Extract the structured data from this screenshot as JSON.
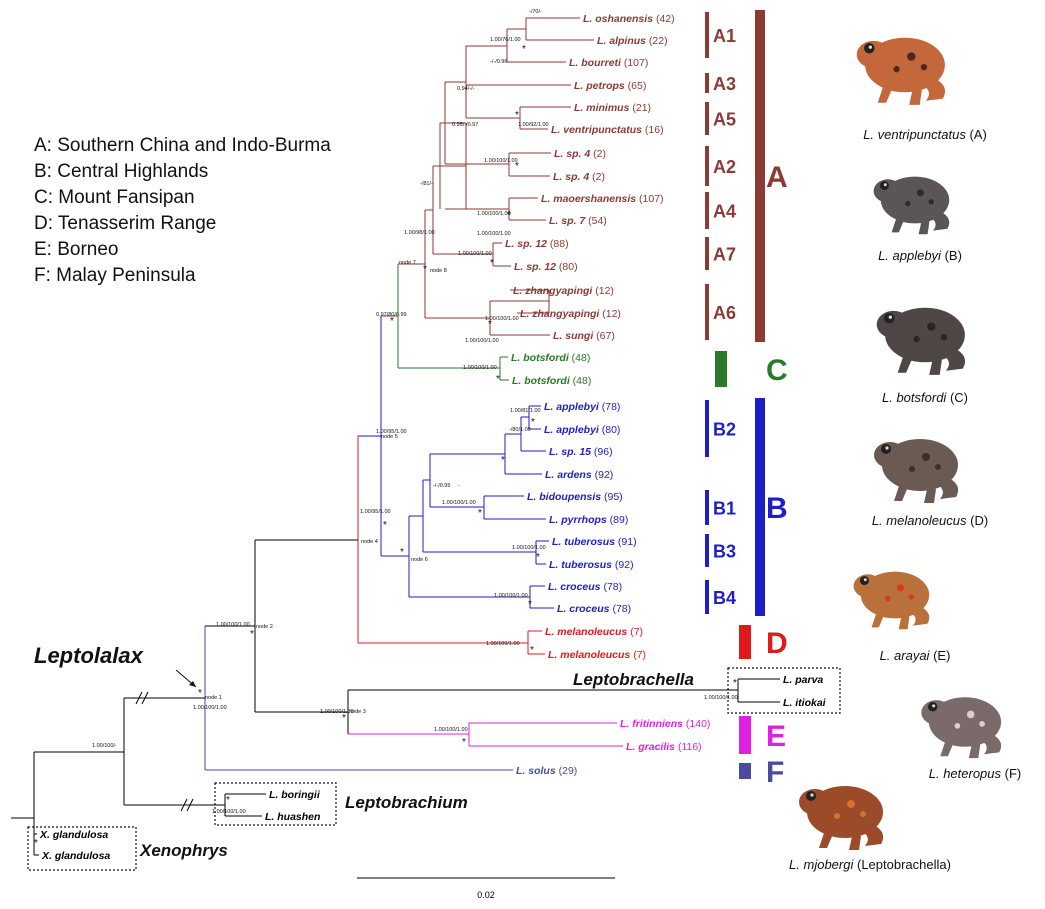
{
  "legend": [
    "A: Southern China and Indo-Burma",
    "B: Central Highlands",
    "C: Mount Fansipan",
    "D: Tenasserim Range",
    "E: Borneo",
    "F: Malay Peninsula"
  ],
  "colors": {
    "A": "#8b3a34",
    "B": "#1e1ec8",
    "C": "#2a7a2a",
    "D": "#e01a1a",
    "E": "#e020e0",
    "F": "#4a4aa0",
    "outgroup": "#000000"
  },
  "taxa": [
    {
      "name": "L. oshanensis",
      "count": "(42)",
      "clade": "A"
    },
    {
      "name": "L. alpinus",
      "count": "(22)",
      "clade": "A"
    },
    {
      "name": "L. bourreti",
      "count": "(107)",
      "clade": "A"
    },
    {
      "name": "L. petrops",
      "count": "(65)",
      "clade": "A"
    },
    {
      "name": "L. minimus",
      "count": "(21)",
      "clade": "A"
    },
    {
      "name": "L. ventripunctatus",
      "count": "(16)",
      "clade": "A"
    },
    {
      "name": "L. sp. 4",
      "count": "(2)",
      "clade": "A"
    },
    {
      "name": "L. sp. 4",
      "count": "(2)",
      "clade": "A"
    },
    {
      "name": "L. maoershanensis",
      "count": "(107)",
      "clade": "A"
    },
    {
      "name": "L. sp. 7",
      "count": "(54)",
      "clade": "A"
    },
    {
      "name": "L. sp. 12",
      "count": "(88)",
      "clade": "A"
    },
    {
      "name": "L. sp. 12",
      "count": "(80)",
      "clade": "A"
    },
    {
      "name": "L. zhangyapingi",
      "count": "(12)",
      "clade": "A"
    },
    {
      "name": "L. zhangyapingi",
      "count": "(12)",
      "clade": "A"
    },
    {
      "name": "L. sungi",
      "count": "(67)",
      "clade": "A"
    },
    {
      "name": "L. botsfordi",
      "count": "(48)",
      "clade": "C"
    },
    {
      "name": "L. botsfordi",
      "count": "(48)",
      "clade": "C"
    },
    {
      "name": "L. applebyi",
      "count": "(78)",
      "clade": "B"
    },
    {
      "name": "L. applebyi",
      "count": "(80)",
      "clade": "B"
    },
    {
      "name": "L. sp. 15",
      "count": "(96)",
      "clade": "B"
    },
    {
      "name": "L. ardens",
      "count": "(92)",
      "clade": "B"
    },
    {
      "name": "L. bidoupensis",
      "count": "(95)",
      "clade": "B"
    },
    {
      "name": "L. pyrrhops",
      "count": "(89)",
      "clade": "B"
    },
    {
      "name": "L. tuberosus",
      "count": "(91)",
      "clade": "B"
    },
    {
      "name": "L. tuberosus",
      "count": "(92)",
      "clade": "B"
    },
    {
      "name": "L. croceus",
      "count": "(78)",
      "clade": "B"
    },
    {
      "name": "L. croceus",
      "count": "(78)",
      "clade": "B"
    },
    {
      "name": "L. melanoleucus",
      "count": "(7)",
      "clade": "D"
    },
    {
      "name": "L. melanoleucus",
      "count": "(7)",
      "clade": "D"
    },
    {
      "name": "L. parva",
      "count": "",
      "clade": "outgroup"
    },
    {
      "name": "L. itiokai",
      "count": "",
      "clade": "outgroup"
    },
    {
      "name": "L. fritinniens",
      "count": "(140)",
      "clade": "E"
    },
    {
      "name": "L. gracilis",
      "count": "(116)",
      "clade": "E"
    },
    {
      "name": "L. solus",
      "count": "(29)",
      "clade": "F"
    },
    {
      "name": "L. boringii",
      "count": "",
      "clade": "outgroup"
    },
    {
      "name": "L. huashen",
      "count": "",
      "clade": "outgroup"
    },
    {
      "name": "X. glandulosa",
      "count": "",
      "clade": "outgroup"
    },
    {
      "name": "X. glandulosa",
      "count": "",
      "clade": "outgroup"
    }
  ],
  "subclades": [
    "A1",
    "A3",
    "A5",
    "A2",
    "A4",
    "A7",
    "A6",
    "C",
    "B2",
    "B1",
    "B3",
    "B4",
    "D",
    "E",
    "F"
  ],
  "major_clades": [
    "A",
    "C",
    "B",
    "D",
    "E",
    "F"
  ],
  "genus_labels": [
    "Leptolalax",
    "Leptobrachella",
    "Leptobrachium",
    "Xenophrys"
  ],
  "support_values": [
    "-/70/-",
    "1.00/76/1.00",
    "-/-/0.96",
    "0.94/-/-",
    "0.95/-/0.97",
    "1.00/92/1.00",
    "1.00/100/1.00",
    "1.00/100/1.00",
    "1.00/100/1.00",
    "-/81/-",
    "1.00/100/1.00",
    "1.00/98/1.00",
    "1.00/100/1.00",
    "1.00/100/1.00",
    "0.97/80/0.99",
    "1.00/100/1.00",
    "1.00/81/1.00",
    "-/80/1.00",
    "1.00/95/1.00",
    "-",
    "-/-/0.95",
    "1.00/100/1.00",
    "1.00/100/1.00",
    "1.00/95/1.00",
    "1.00/100/1.00",
    "1.00/100/1.00",
    "1.00/100/1.00",
    "1.00/100/1.00",
    "1.00/100/1.00",
    "1.00/100/1.00",
    "1.00/100/1.00",
    "1.00/100/-",
    "1.00/100/1.00"
  ],
  "node_labels": [
    "node 8",
    "node 7",
    "node 5",
    "node 4",
    "node 6",
    "node 2",
    "node 1",
    "node 3"
  ],
  "scale_bar": "0.02",
  "photo_captions": [
    {
      "species": "L. ventripunctatus",
      "region": "(A)"
    },
    {
      "species": "L. applebyi",
      "region": "(B)"
    },
    {
      "species": "L. botsfordi",
      "region": "(C)"
    },
    {
      "species": "L. melanoleucus",
      "region": "(D)"
    },
    {
      "species": "L. arayai",
      "region": "(E)"
    },
    {
      "species": "L. heteropus",
      "region": "(F)"
    },
    {
      "species": "L. mjobergi",
      "region": "(Leptobrachella)"
    }
  ]
}
